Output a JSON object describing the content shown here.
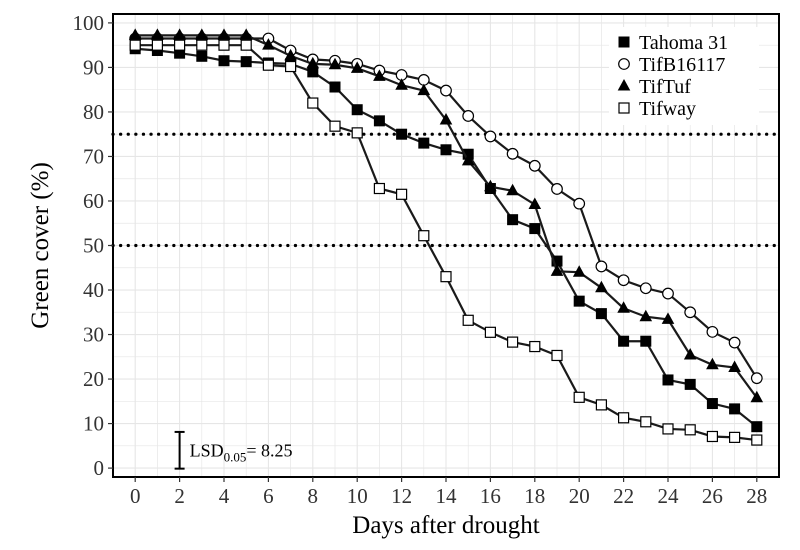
{
  "chart_data": {
    "type": "line",
    "title": "",
    "xlabel": "Days after drought",
    "ylabel": "Green cover (%)",
    "xlim": [
      -1,
      29
    ],
    "ylim": [
      -2,
      102
    ],
    "xticks": [
      0,
      2,
      4,
      6,
      8,
      10,
      12,
      14,
      16,
      18,
      20,
      22,
      24,
      26,
      28
    ],
    "yticks": [
      0,
      10,
      20,
      30,
      40,
      50,
      60,
      70,
      80,
      90,
      100
    ],
    "grid": true,
    "legend_position": "top-right",
    "reference_lines": [
      75,
      50
    ],
    "lsd": {
      "label_main": "LSD",
      "label_sub": "0.05",
      "label_value": "= 8.25",
      "value": 8.25,
      "x": 2,
      "y_center": 4
    },
    "x": [
      0,
      1,
      2,
      3,
      4,
      5,
      6,
      7,
      8,
      9,
      10,
      11,
      12,
      13,
      14,
      15,
      16,
      17,
      18,
      19,
      20,
      21,
      22,
      23,
      24,
      25,
      26,
      27,
      28
    ],
    "series": [
      {
        "name": "Tahoma 31",
        "marker": "square-filled",
        "values": [
          94.2,
          93.8,
          93.2,
          92.5,
          91.5,
          91.3,
          91.0,
          90.8,
          89.0,
          85.6,
          80.5,
          78.0,
          75.0,
          73.0,
          71.5,
          70.5,
          62.8,
          55.8,
          53.8,
          46.5,
          37.5,
          34.7,
          28.5,
          28.5,
          19.8,
          18.8,
          14.5,
          13.3,
          9.3
        ]
      },
      {
        "name": "TifB16117",
        "marker": "circle-open",
        "values": [
          96.5,
          96.5,
          96.5,
          96.5,
          96.5,
          96.5,
          96.5,
          93.8,
          91.8,
          91.5,
          90.8,
          89.3,
          88.3,
          87.2,
          84.8,
          79.1,
          74.5,
          70.6,
          67.9,
          62.7,
          59.4,
          45.3,
          42.2,
          40.4,
          39.2,
          35.0,
          30.6,
          28.2,
          20.2
        ]
      },
      {
        "name": "TifTuf",
        "marker": "triangle-filled",
        "values": [
          97.2,
          97.2,
          97.2,
          97.2,
          97.2,
          97.2,
          95.0,
          92.6,
          90.8,
          90.6,
          89.8,
          88.0,
          86.0,
          84.8,
          78.2,
          69.0,
          63.2,
          62.3,
          59.2,
          44.2,
          44.0,
          40.5,
          35.9,
          34.0,
          33.4,
          25.4,
          23.2,
          22.6,
          15.8
        ]
      },
      {
        "name": "Tifway",
        "marker": "square-open",
        "values": [
          95.0,
          95.0,
          95.0,
          95.0,
          95.0,
          95.0,
          90.5,
          90.2,
          82.0,
          76.8,
          75.3,
          62.8,
          61.5,
          52.2,
          43.0,
          33.2,
          30.5,
          28.3,
          27.3,
          25.3,
          15.9,
          14.2,
          11.3,
          10.4,
          8.8,
          8.6,
          7.1,
          6.9,
          6.3
        ]
      }
    ]
  },
  "colors": {
    "line": "#1a1a1a",
    "grid": "#e6e6e6",
    "frame": "#000000",
    "ref_line": "#000000",
    "tick_text": "#333333"
  }
}
